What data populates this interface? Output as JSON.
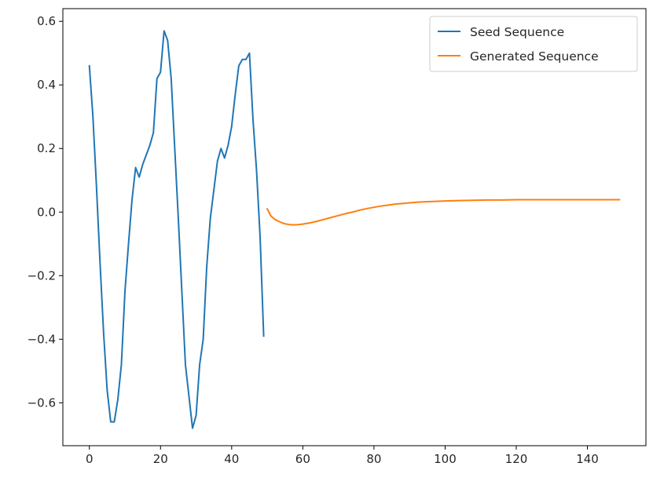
{
  "chart_data": {
    "type": "line",
    "title": "",
    "xlabel": "",
    "ylabel": "",
    "xlim": [
      -7.45,
      156.45
    ],
    "ylim": [
      -0.735,
      0.64
    ],
    "xticks": [
      0,
      20,
      40,
      60,
      80,
      100,
      120,
      140
    ],
    "yticks": [
      -0.6,
      -0.4,
      -0.2,
      0.0,
      0.2,
      0.4,
      0.6
    ],
    "xtick_labels": [
      "0",
      "20",
      "40",
      "60",
      "80",
      "100",
      "120",
      "140"
    ],
    "ytick_labels": [
      "−0.6",
      "−0.4",
      "−0.2",
      "0.0",
      "0.2",
      "0.4",
      "0.6"
    ],
    "grid": false,
    "legend_position": "top-right",
    "series": [
      {
        "name": "Seed Sequence",
        "color": "#1f77b4",
        "x": [
          0,
          1,
          2,
          3,
          4,
          5,
          6,
          7,
          8,
          9,
          10,
          11,
          12,
          13,
          14,
          15,
          16,
          17,
          18,
          19,
          20,
          21,
          22,
          23,
          24,
          25,
          26,
          27,
          28,
          29,
          30,
          31,
          32,
          33,
          34,
          35,
          36,
          37,
          38,
          39,
          40,
          41,
          42,
          43,
          44,
          45,
          46,
          47,
          48,
          49
        ],
        "y": [
          0.46,
          0.3,
          0.08,
          -0.16,
          -0.38,
          -0.56,
          -0.66,
          -0.66,
          -0.59,
          -0.48,
          -0.25,
          -0.1,
          0.04,
          0.14,
          0.11,
          0.15,
          0.18,
          0.21,
          0.25,
          0.42,
          0.44,
          0.57,
          0.54,
          0.42,
          0.2,
          -0.02,
          -0.25,
          -0.48,
          -0.58,
          -0.68,
          -0.64,
          -0.48,
          -0.4,
          -0.17,
          -0.02,
          0.07,
          0.16,
          0.2,
          0.17,
          0.21,
          0.27,
          0.37,
          0.46,
          0.48,
          0.48,
          0.5,
          0.29,
          0.13,
          -0.08,
          -0.39
        ]
      },
      {
        "name": "Generated Sequence",
        "color": "#ff7f0e",
        "x": [
          50,
          51,
          52,
          53,
          54,
          55,
          56,
          57,
          58,
          59,
          60,
          62,
          64,
          66,
          68,
          70,
          72,
          74,
          76,
          78,
          80,
          82,
          84,
          86,
          88,
          90,
          92,
          94,
          96,
          98,
          100,
          104,
          108,
          112,
          116,
          120,
          124,
          128,
          132,
          136,
          140,
          144,
          149
        ],
        "y": [
          0.01,
          -0.012,
          -0.022,
          -0.028,
          -0.033,
          -0.037,
          -0.039,
          -0.04,
          -0.04,
          -0.039,
          -0.038,
          -0.034,
          -0.029,
          -0.023,
          -0.017,
          -0.011,
          -0.005,
          0.0,
          0.006,
          0.011,
          0.015,
          0.019,
          0.022,
          0.025,
          0.027,
          0.029,
          0.031,
          0.032,
          0.033,
          0.034,
          0.035,
          0.036,
          0.037,
          0.038,
          0.038,
          0.039,
          0.039,
          0.039,
          0.039,
          0.039,
          0.039,
          0.039,
          0.039
        ]
      }
    ]
  }
}
